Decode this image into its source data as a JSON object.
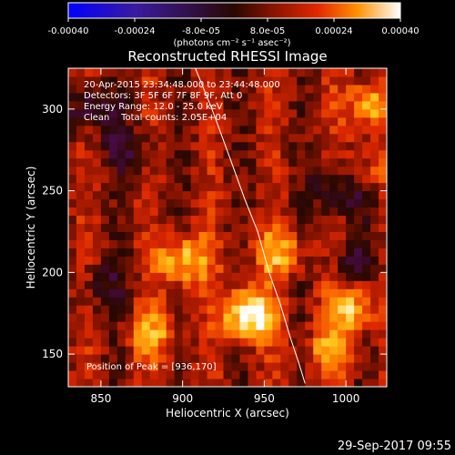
{
  "chart_data": {
    "type": "heatmap",
    "title": "Reconstructed RHESSI Image",
    "xlabel": "Heliocentric X (arcsec)",
    "ylabel": "Heliocentric Y (arcsec)",
    "xlim": [
      830,
      1025
    ],
    "ylim": [
      130,
      325
    ],
    "x_ticks": [
      850,
      900,
      950,
      1000
    ],
    "y_ticks": [
      150,
      200,
      250,
      300
    ],
    "x_tick_labels": [
      "850",
      "900",
      "950",
      "1000"
    ],
    "y_tick_labels": [
      "150",
      "200",
      "250",
      "300"
    ],
    "colorbar": {
      "ticks": [
        -0.0004,
        -0.00024,
        -8e-05,
        8e-05,
        0.00024,
        0.0004
      ],
      "tick_labels": [
        "-0.00040",
        "-0.00024",
        "-8.0e-05",
        "8.0e-05",
        "0.00024",
        "0.00040"
      ],
      "range": [
        -0.0004,
        0.0004
      ],
      "unit_label": "(photons cm⁻² s⁻¹ asec⁻²)"
    },
    "annotations": [
      "20-Apr-2015 23:34:48.000 to 23:44:48.000",
      "Detectors: 3F 5F 6F 7F 8F 9F, Att 0",
      "Energy Range: 12.0 - 25.0 keV",
      "Clean    Total counts: 2.05E+04"
    ],
    "peak_label": "Position of Peak = [936,170]",
    "peak_position": [
      936,
      170
    ],
    "limb_curve": [
      [
        907,
        327
      ],
      [
        918,
        300
      ],
      [
        929,
        270
      ],
      [
        938,
        245
      ],
      [
        946,
        225
      ],
      [
        953,
        200
      ],
      [
        960,
        180
      ],
      [
        966,
        160
      ],
      [
        971,
        145
      ],
      [
        975,
        132
      ]
    ],
    "hotspots": [
      {
        "x": 938,
        "y": 172,
        "intensity": 0.00036
      },
      {
        "x": 898,
        "y": 205,
        "intensity": 0.00026
      },
      {
        "x": 1000,
        "y": 178,
        "intensity": 0.00024
      },
      {
        "x": 1012,
        "y": 300,
        "intensity": 0.00022
      },
      {
        "x": 957,
        "y": 210,
        "intensity": 0.0002
      },
      {
        "x": 880,
        "y": 160,
        "intensity": 0.00018
      },
      {
        "x": 988,
        "y": 150,
        "intensity": 0.00018
      },
      {
        "x": 1010,
        "y": 260,
        "intensity": 0.00012
      }
    ],
    "coldspots": [
      {
        "x": 840,
        "y": 300,
        "intensity": -0.00016
      },
      {
        "x": 995,
        "y": 248,
        "intensity": -0.00018
      },
      {
        "x": 1000,
        "y": 202,
        "intensity": -0.00012
      },
      {
        "x": 862,
        "y": 275,
        "intensity": -0.00012
      },
      {
        "x": 850,
        "y": 190,
        "intensity": -0.0001
      }
    ]
  },
  "footer_timestamp": "29-Sep-2017 09:55"
}
